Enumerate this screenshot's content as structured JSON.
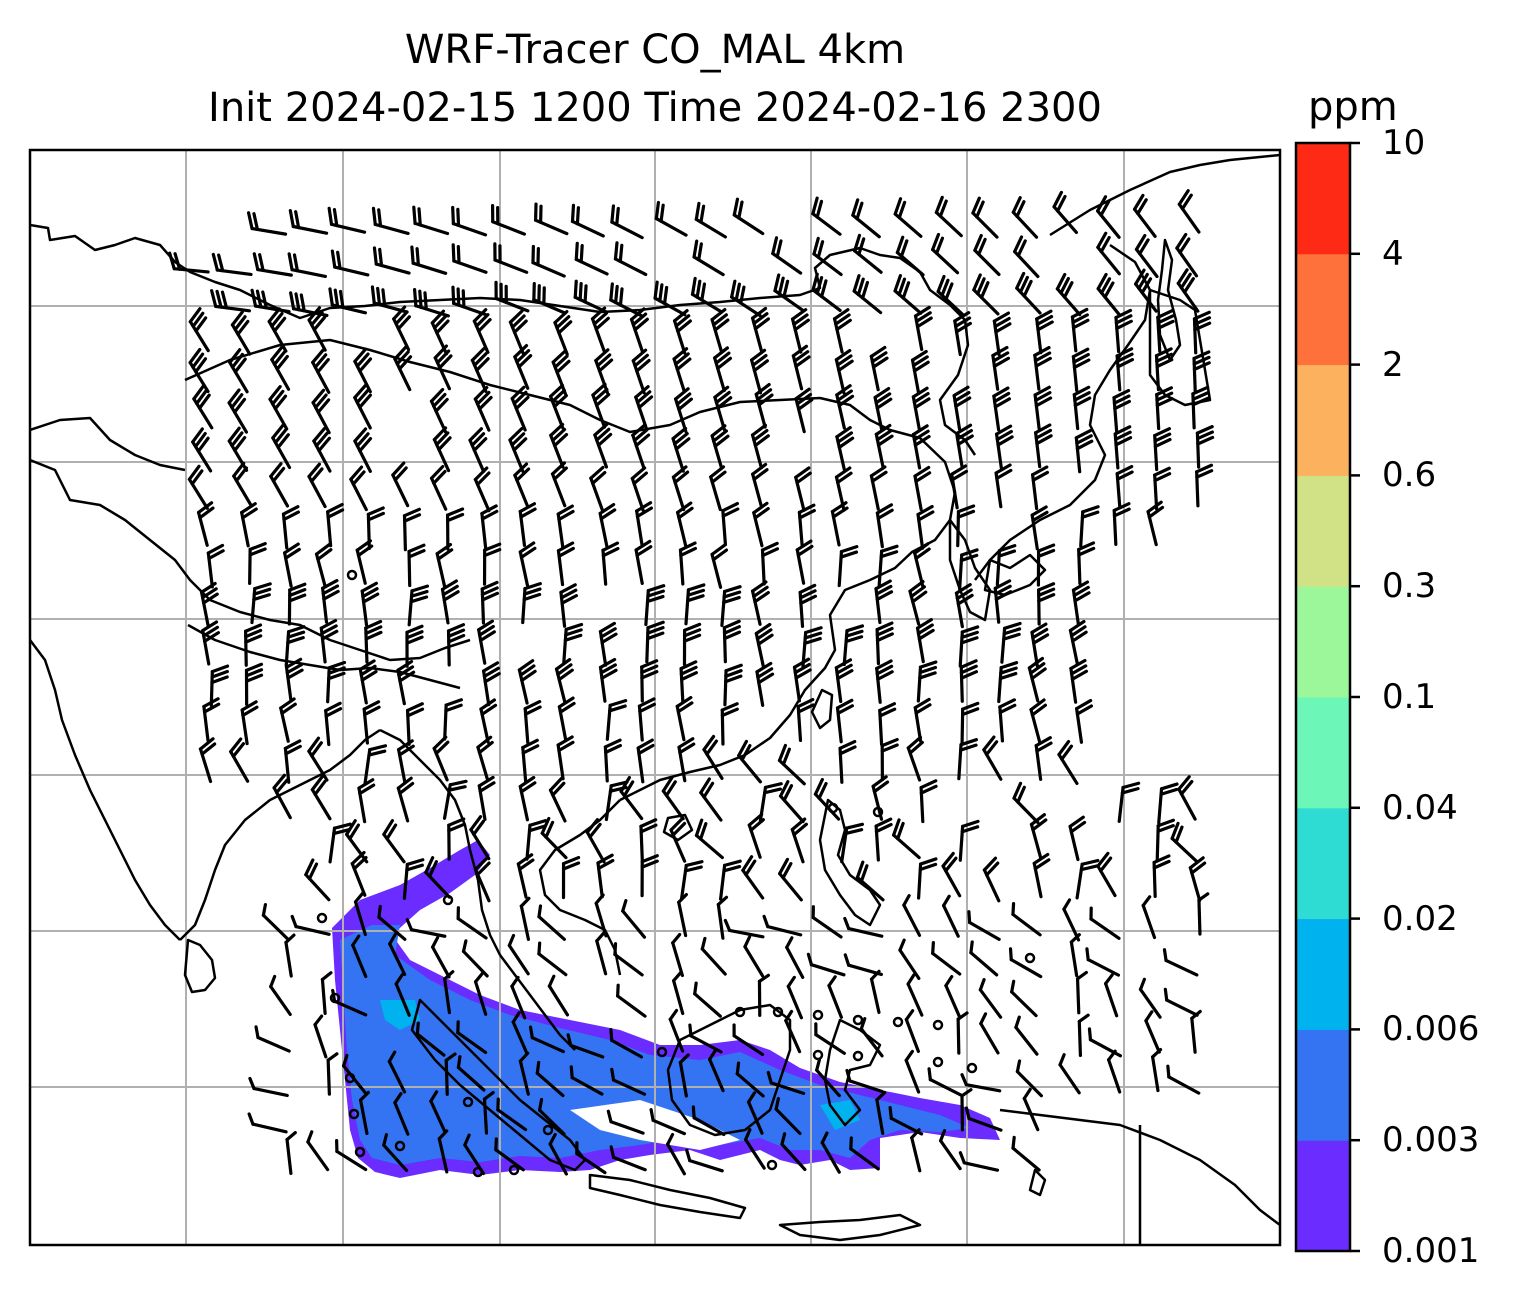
{
  "figure": {
    "title_line1": "WRF-Tracer CO_MAL 4km",
    "title_line2": "Init 2024-02-15 1200 Time 2024-02-16 2300"
  },
  "colorbar": {
    "unit": "ppm",
    "ticks": [
      "0.001",
      "0.003",
      "0.006",
      "0.02",
      "0.04",
      "0.1",
      "0.3",
      "0.6",
      "2",
      "4",
      "10"
    ],
    "colors": [
      "#6a2cff",
      "#3474f3",
      "#00b2ee",
      "#2edcd4",
      "#6cf7b8",
      "#9cf79b",
      "#d1e286",
      "#fcb15f",
      "#ff713b",
      "#ff2a16"
    ]
  },
  "map": {
    "gridline_color": "#b0b0b0",
    "coastline_color": "#000000",
    "barb_color": "#000000"
  }
}
